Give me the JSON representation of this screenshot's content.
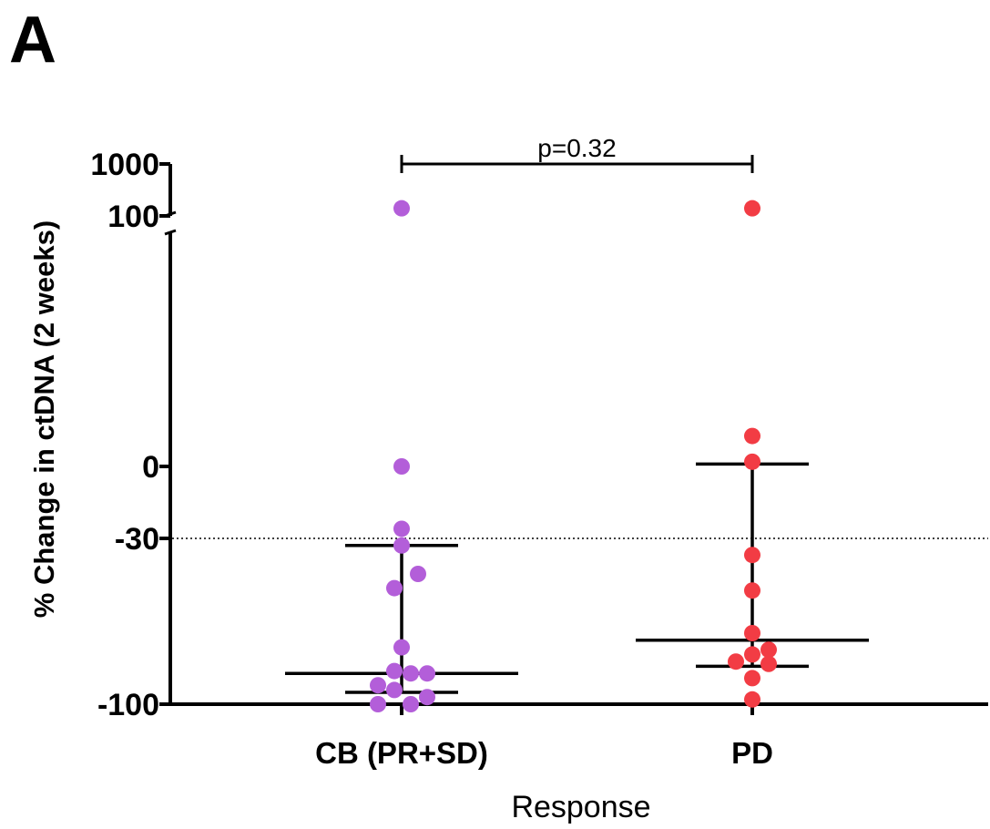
{
  "panel_label": "A",
  "chart_data": {
    "type": "scatter",
    "xlabel": "Response",
    "ylabel": "% Change in ctDNA (2 weeks)",
    "y_scale": "segmented (broken axis)",
    "ytick_labels": [
      "1000",
      "100",
      "0",
      "-30",
      "-100"
    ],
    "categories": [
      "CB (PR+SD)",
      "PD"
    ],
    "reference_line": {
      "y": -30,
      "style": "dotted"
    },
    "annotation": {
      "text": "p=0.32",
      "between": [
        "CB (PR+SD)",
        "PD"
      ]
    },
    "colors": {
      "CB (PR+SD)": "#b35ed9",
      "PD": "#f23c44"
    },
    "series": [
      {
        "category": "CB (PR+SD)",
        "points": [
          {
            "x": 0,
            "y": 140
          },
          {
            "x": 0,
            "y": 0
          },
          {
            "x": 0,
            "y": -26
          },
          {
            "x": 0,
            "y": -33
          },
          {
            "x": 0.09,
            "y": -45
          },
          {
            "x": -0.04,
            "y": -51
          },
          {
            "x": 0,
            "y": -76
          },
          {
            "x": -0.04,
            "y": -86
          },
          {
            "x": 0.05,
            "y": -87
          },
          {
            "x": 0.14,
            "y": -87
          },
          {
            "x": -0.13,
            "y": -92
          },
          {
            "x": -0.04,
            "y": -94
          },
          {
            "x": 0.14,
            "y": -97
          },
          {
            "x": -0.13,
            "y": -100
          },
          {
            "x": 0.05,
            "y": -100
          }
        ],
        "median": -87,
        "iqr": [
          -95,
          -33
        ]
      },
      {
        "category": "PD",
        "points": [
          {
            "x": 0,
            "y": 140
          },
          {
            "x": 0,
            "y": 13
          },
          {
            "x": 0,
            "y": 2
          },
          {
            "x": 0,
            "y": -37
          },
          {
            "x": 0,
            "y": -52
          },
          {
            "x": 0,
            "y": -70
          },
          {
            "x": -0.09,
            "y": -82
          },
          {
            "x": 0,
            "y": -79
          },
          {
            "x": 0.09,
            "y": -77
          },
          {
            "x": 0.09,
            "y": -83
          },
          {
            "x": 0,
            "y": -89
          },
          {
            "x": 0,
            "y": -98
          }
        ],
        "median": -73,
        "iqr": [
          -84,
          1
        ]
      }
    ]
  }
}
